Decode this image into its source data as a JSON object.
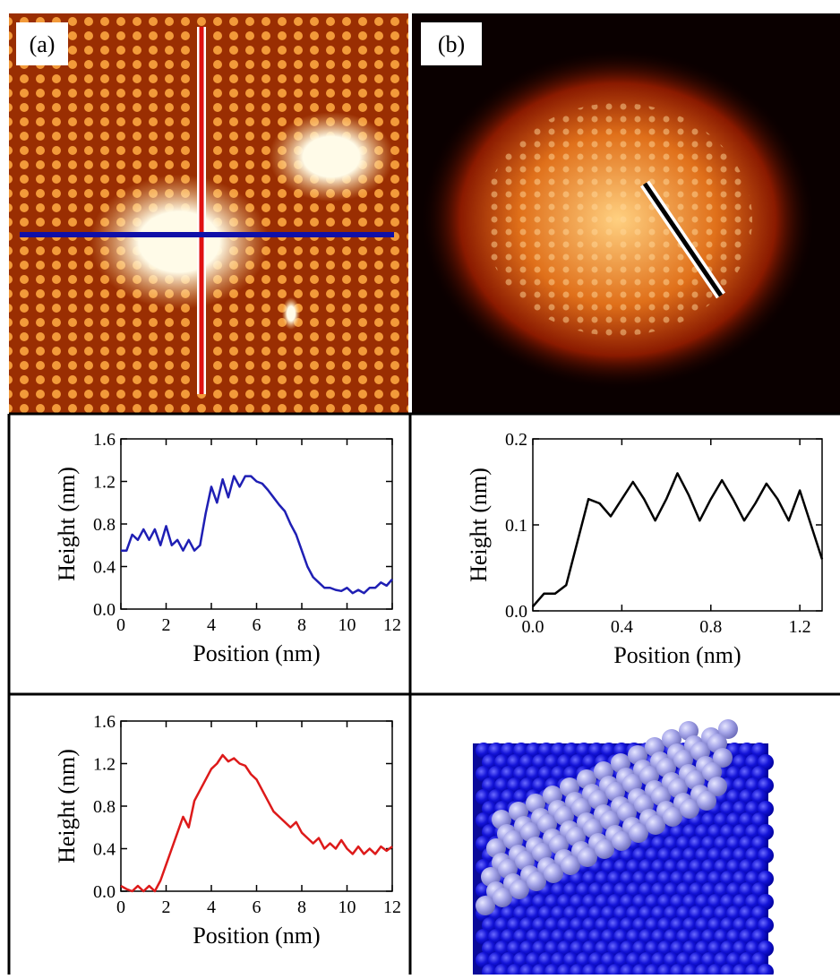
{
  "panels": {
    "a": "(a)",
    "b": "(b)"
  },
  "chart_data": [
    {
      "type": "line",
      "color": "#1f1fb4",
      "ylabel": "Height (nm)",
      "xlabel": "Position (nm)",
      "x": [
        0,
        0.25,
        0.5,
        0.75,
        1,
        1.25,
        1.5,
        1.75,
        2,
        2.25,
        2.5,
        2.75,
        3,
        3.25,
        3.5,
        3.75,
        4,
        4.25,
        4.5,
        4.75,
        5,
        5.25,
        5.5,
        5.75,
        6,
        6.25,
        6.5,
        6.75,
        7,
        7.25,
        7.5,
        7.75,
        8,
        8.25,
        8.5,
        8.75,
        9,
        9.25,
        9.5,
        9.75,
        10,
        10.25,
        10.5,
        10.75,
        11,
        11.25,
        11.5,
        11.75,
        12
      ],
      "values": [
        0.55,
        0.55,
        0.7,
        0.65,
        0.75,
        0.65,
        0.75,
        0.6,
        0.78,
        0.6,
        0.65,
        0.55,
        0.65,
        0.55,
        0.6,
        0.9,
        1.15,
        1.0,
        1.22,
        1.05,
        1.25,
        1.15,
        1.25,
        1.25,
        1.2,
        1.18,
        1.12,
        1.05,
        0.98,
        0.92,
        0.8,
        0.7,
        0.55,
        0.4,
        0.3,
        0.25,
        0.2,
        0.2,
        0.18,
        0.17,
        0.2,
        0.15,
        0.18,
        0.15,
        0.2,
        0.2,
        0.25,
        0.22,
        0.28
      ],
      "xlim": [
        0,
        12
      ],
      "ylim": [
        0,
        1.6
      ],
      "xticks": [
        0,
        2,
        4,
        6,
        8,
        10,
        12
      ],
      "yticks": [
        {
          "value": 0,
          "label": "0.0"
        },
        0.4,
        0.8,
        1.2,
        1.6
      ]
    },
    {
      "type": "line",
      "color": "#000000",
      "ylabel": "Height (nm)",
      "xlabel": "Position (nm)",
      "x": [
        0,
        0.05,
        0.1,
        0.15,
        0.2,
        0.25,
        0.3,
        0.35,
        0.4,
        0.45,
        0.5,
        0.55,
        0.6,
        0.65,
        0.7,
        0.75,
        0.8,
        0.85,
        0.9,
        0.95,
        1.0,
        1.05,
        1.1,
        1.15,
        1.2,
        1.25,
        1.3
      ],
      "values": [
        0.005,
        0.02,
        0.02,
        0.03,
        0.08,
        0.13,
        0.125,
        0.11,
        0.13,
        0.15,
        0.13,
        0.105,
        0.13,
        0.16,
        0.135,
        0.105,
        0.13,
        0.152,
        0.13,
        0.105,
        0.125,
        0.148,
        0.13,
        0.105,
        0.14,
        0.1,
        0.06
      ],
      "xlim": [
        0,
        1.3
      ],
      "ylim": [
        0,
        0.2
      ],
      "xticks": [
        {
          "value": 0,
          "label": "0.0"
        },
        0.4,
        0.8,
        1.2
      ],
      "yticks": [
        {
          "value": 0,
          "label": "0.0"
        },
        0.1,
        0.2
      ]
    },
    {
      "type": "line",
      "color": "#dd1a1a",
      "ylabel": "Height (nm)",
      "xlabel": "Position (nm)",
      "x": [
        0,
        0.25,
        0.5,
        0.75,
        1,
        1.25,
        1.5,
        1.75,
        2,
        2.25,
        2.5,
        2.75,
        3,
        3.25,
        3.5,
        3.75,
        4,
        4.25,
        4.5,
        4.75,
        5,
        5.25,
        5.5,
        5.75,
        6,
        6.25,
        6.5,
        6.75,
        7,
        7.25,
        7.5,
        7.75,
        8,
        8.25,
        8.5,
        8.75,
        9,
        9.25,
        9.5,
        9.75,
        10,
        10.25,
        10.5,
        10.75,
        11,
        11.25,
        11.5,
        11.75,
        12
      ],
      "values": [
        0.05,
        0.02,
        0,
        0.05,
        0,
        0.05,
        0,
        0.1,
        0.25,
        0.4,
        0.55,
        0.7,
        0.6,
        0.85,
        0.95,
        1.05,
        1.15,
        1.2,
        1.28,
        1.22,
        1.25,
        1.2,
        1.18,
        1.1,
        1.05,
        0.95,
        0.85,
        0.75,
        0.7,
        0.65,
        0.6,
        0.65,
        0.55,
        0.5,
        0.45,
        0.5,
        0.4,
        0.45,
        0.4,
        0.48,
        0.4,
        0.35,
        0.42,
        0.35,
        0.4,
        0.35,
        0.42,
        0.38,
        0.42
      ],
      "xlim": [
        0,
        12
      ],
      "ylim": [
        0,
        1.6
      ],
      "xticks": [
        0,
        2,
        4,
        6,
        8,
        10,
        12
      ],
      "yticks": [
        {
          "value": 0,
          "label": "0.0"
        },
        0.4,
        0.8,
        1.2,
        1.6
      ]
    }
  ]
}
